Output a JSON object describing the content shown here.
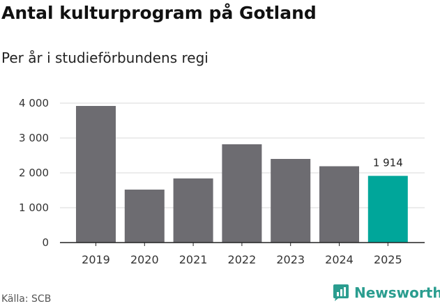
{
  "header": {
    "title": "Antal kulturprogram på Gotland",
    "subtitle": "Per år i studieförbundens regi"
  },
  "footer": {
    "source": "Källa: SCB",
    "brand": "Newsworthy",
    "brand_color": "#2a9d8f"
  },
  "chart_data": {
    "type": "bar",
    "title": "Antal kulturprogram på Gotland",
    "subtitle": "Per år i studieförbundens regi",
    "xlabel": "",
    "ylabel": "",
    "categories": [
      "2019",
      "2020",
      "2021",
      "2022",
      "2023",
      "2024",
      "2025"
    ],
    "values": [
      3920,
      1520,
      1840,
      2820,
      2400,
      2190,
      1914
    ],
    "ylim": [
      0,
      4000
    ],
    "yticks": [
      0,
      1000,
      2000,
      3000,
      4000
    ],
    "ytick_labels": [
      "0",
      "1 000",
      "2 000",
      "3 000",
      "4 000"
    ],
    "grid": true,
    "annotations": [
      {
        "category": "2025",
        "text": "1 914"
      }
    ],
    "colors": {
      "default": "#6d6c71",
      "highlight": "#00a69a",
      "grid": "#d9d9d9",
      "axis": "#222222"
    },
    "highlight_index": 6
  }
}
